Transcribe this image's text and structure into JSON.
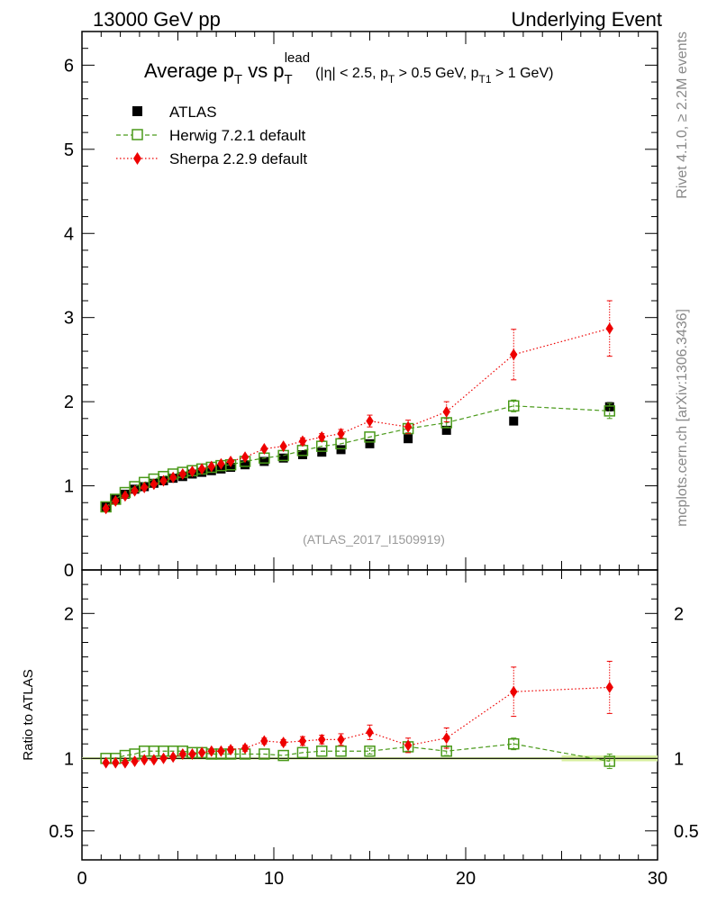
{
  "header": {
    "energy": "13000 GeV pp",
    "process": "Underlying Event"
  },
  "side_labels": {
    "rivet": "Rivet 4.1.0, ≥ 2.2M events",
    "mcplots": "mcplots.cern.ch [arXiv:1306.3436]"
  },
  "watermark": "(ATLAS_2017_I1509919)",
  "chart_data": {
    "type": "scatter",
    "title": {
      "main": "Average p",
      "main_sub": "T",
      "vs": " vs p",
      "vs_sub": "T",
      "vs_sup": "lead",
      "cuts": "(|η| < 2.5, p",
      "cuts_sub1": "T",
      "cuts_mid": " > 0.5 GeV, p",
      "cuts_sub2": "T1",
      "cuts_end": " > 1 GeV)"
    },
    "xlim": [
      0,
      30
    ],
    "ylim": [
      0,
      6.4
    ],
    "ratio_ylim": [
      0.3,
      2.3
    ],
    "ratio_ylabel": "Ratio to ATLAS",
    "x_ticks": [
      "0",
      "10",
      "20",
      "30"
    ],
    "y_ticks": [
      "0",
      "1",
      "2",
      "3",
      "4",
      "5",
      "6"
    ],
    "ratio_ticks": [
      "0.5",
      "1",
      "2"
    ],
    "x": [
      1.25,
      1.75,
      2.25,
      2.75,
      3.25,
      3.75,
      4.25,
      4.75,
      5.25,
      5.75,
      6.25,
      6.75,
      7.25,
      7.75,
      8.5,
      9.5,
      10.5,
      11.5,
      12.5,
      13.5,
      15,
      17,
      19,
      22.5,
      27.5
    ],
    "series": [
      {
        "name": "ATLAS",
        "style": "data",
        "color": "#000000",
        "values": [
          0.75,
          0.84,
          0.9,
          0.96,
          0.99,
          1.03,
          1.06,
          1.09,
          1.11,
          1.14,
          1.16,
          1.18,
          1.2,
          1.22,
          1.25,
          1.29,
          1.33,
          1.37,
          1.4,
          1.43,
          1.5,
          1.56,
          1.66,
          1.77,
          1.94
        ],
        "errors": [
          0.01,
          0.01,
          0.01,
          0.01,
          0.01,
          0.01,
          0.01,
          0.01,
          0.01,
          0.01,
          0.01,
          0.01,
          0.01,
          0.01,
          0.01,
          0.01,
          0.01,
          0.01,
          0.02,
          0.02,
          0.02,
          0.02,
          0.03,
          0.04,
          0.05
        ]
      },
      {
        "name": "Herwig 7.2.1 default",
        "style": "herwig",
        "color": "#4a9a1a",
        "values": [
          0.75,
          0.84,
          0.92,
          0.99,
          1.04,
          1.08,
          1.11,
          1.14,
          1.16,
          1.18,
          1.2,
          1.22,
          1.24,
          1.25,
          1.29,
          1.33,
          1.36,
          1.42,
          1.47,
          1.5,
          1.58,
          1.68,
          1.75,
          1.95,
          1.89
        ],
        "errors": [
          0.01,
          0.01,
          0.01,
          0.01,
          0.01,
          0.01,
          0.01,
          0.01,
          0.01,
          0.01,
          0.01,
          0.01,
          0.01,
          0.01,
          0.02,
          0.02,
          0.02,
          0.02,
          0.02,
          0.02,
          0.03,
          0.05,
          0.05,
          0.07,
          0.09
        ]
      },
      {
        "name": "Sherpa 2.2.9 default",
        "style": "sherpa",
        "color": "#ee0000",
        "values": [
          0.73,
          0.82,
          0.88,
          0.94,
          0.98,
          1.02,
          1.06,
          1.1,
          1.14,
          1.17,
          1.2,
          1.23,
          1.26,
          1.29,
          1.34,
          1.44,
          1.47,
          1.53,
          1.58,
          1.62,
          1.77,
          1.7,
          1.88,
          2.56,
          2.87
        ],
        "errors": [
          0.01,
          0.01,
          0.01,
          0.01,
          0.01,
          0.01,
          0.01,
          0.01,
          0.01,
          0.01,
          0.01,
          0.01,
          0.02,
          0.02,
          0.02,
          0.03,
          0.03,
          0.04,
          0.04,
          0.05,
          0.07,
          0.08,
          0.12,
          0.3,
          0.33
        ]
      }
    ],
    "ratio_series": [
      {
        "name": "Herwig 7.2.1 default",
        "style": "herwig",
        "color": "#4a9a1a",
        "values": [
          1.0,
          1.0,
          1.02,
          1.03,
          1.05,
          1.05,
          1.05,
          1.05,
          1.05,
          1.04,
          1.04,
          1.03,
          1.03,
          1.03,
          1.03,
          1.03,
          1.02,
          1.04,
          1.05,
          1.05,
          1.05,
          1.08,
          1.05,
          1.1,
          0.98
        ],
        "errors": [
          0.01,
          0.01,
          0.01,
          0.01,
          0.01,
          0.01,
          0.01,
          0.01,
          0.01,
          0.01,
          0.01,
          0.01,
          0.01,
          0.01,
          0.01,
          0.01,
          0.01,
          0.01,
          0.01,
          0.01,
          0.02,
          0.03,
          0.03,
          0.04,
          0.05
        ]
      },
      {
        "name": "Sherpa 2.2.9 default",
        "style": "sherpa",
        "color": "#ee0000",
        "values": [
          0.97,
          0.97,
          0.97,
          0.98,
          0.99,
          0.99,
          1.0,
          1.01,
          1.03,
          1.03,
          1.04,
          1.05,
          1.05,
          1.06,
          1.07,
          1.12,
          1.11,
          1.12,
          1.13,
          1.13,
          1.18,
          1.09,
          1.14,
          1.46,
          1.49
        ],
        "errors": [
          0.01,
          0.01,
          0.01,
          0.01,
          0.01,
          0.01,
          0.01,
          0.01,
          0.01,
          0.01,
          0.01,
          0.01,
          0.01,
          0.02,
          0.02,
          0.02,
          0.02,
          0.03,
          0.03,
          0.04,
          0.05,
          0.05,
          0.07,
          0.17,
          0.18
        ]
      }
    ],
    "ratio_band": {
      "color": "#d8f0a0",
      "x_start": 25,
      "half_width": 0.02
    }
  }
}
